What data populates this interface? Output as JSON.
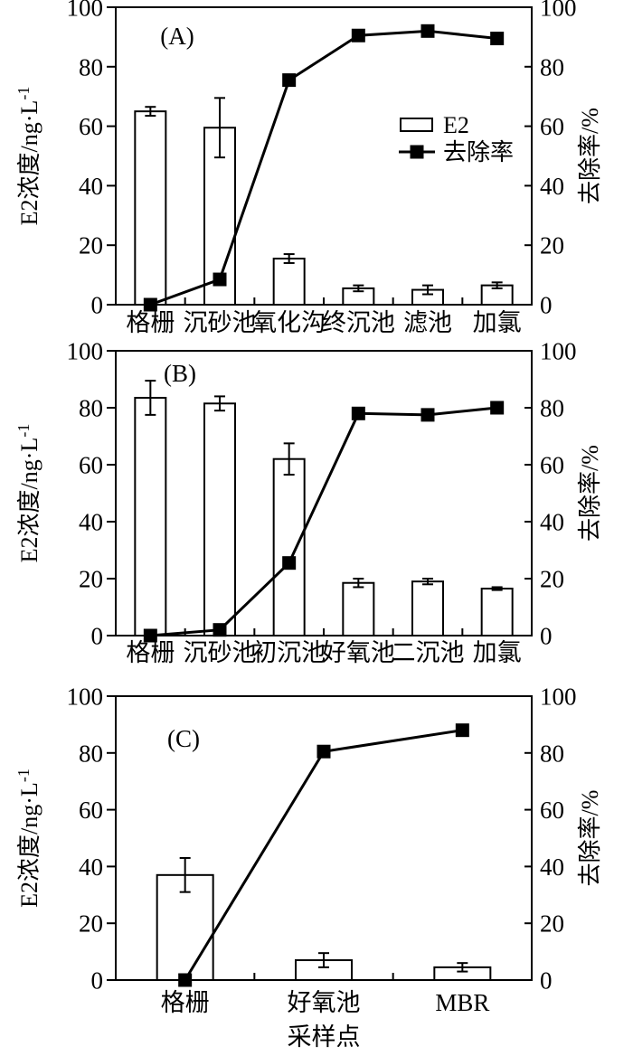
{
  "figure": {
    "background": "#ffffff",
    "ink_color": "#000000",
    "bar_fill": "#ffffff",
    "y_left_label_base": "E2浓度/ng·L",
    "y_left_label_sup": "-1",
    "y_left_label_full": "E2浓度/ng·L⁻¹",
    "y_right_label": "去除率/%",
    "x_axis_label": "采样点",
    "legend": {
      "bar_label": "E2",
      "line_label": "去除率",
      "position": "upper-right-inside-panel-A"
    }
  },
  "chart_data": [
    {
      "panel_label": "(A)",
      "type": "bar+line",
      "categories": [
        "格栅",
        "沉砂池",
        "氧化沟",
        "终沉池",
        "滤池",
        "加氯"
      ],
      "series": [
        {
          "name": "E2",
          "type": "bar",
          "axis": "left",
          "values": [
            65,
            59.5,
            15.5,
            5.5,
            5,
            6.5
          ],
          "errors": [
            1.5,
            10,
            1.5,
            1,
            1.5,
            1
          ]
        },
        {
          "name": "去除率",
          "type": "line",
          "axis": "right",
          "marker": "filled-square",
          "values": [
            0,
            8.5,
            75.5,
            90.5,
            92,
            89.5
          ]
        }
      ],
      "ylabel_left": "E2浓度/ng·L⁻¹",
      "ylabel_right": "去除率/%",
      "ylim_left": [
        0,
        100
      ],
      "ylim_right": [
        0,
        100
      ],
      "yticks": [
        0,
        20,
        40,
        60,
        80,
        100
      ],
      "grid": false,
      "show_legend": true,
      "xlabel": ""
    },
    {
      "panel_label": "(B)",
      "type": "bar+line",
      "categories": [
        "格栅",
        "沉砂池",
        "初沉池",
        "好氧池",
        "二沉池",
        "加氯"
      ],
      "series": [
        {
          "name": "E2",
          "type": "bar",
          "axis": "left",
          "values": [
            83.5,
            81.5,
            62,
            18.5,
            19,
            16.5
          ],
          "errors": [
            6,
            2.5,
            5.5,
            1.5,
            1,
            0.5
          ]
        },
        {
          "name": "去除率",
          "type": "line",
          "axis": "right",
          "marker": "filled-square",
          "values": [
            0,
            2,
            25.5,
            78,
            77.5,
            80
          ]
        }
      ],
      "ylabel_left": "E2浓度/ng·L⁻¹",
      "ylabel_right": "去除率/%",
      "ylim_left": [
        0,
        100
      ],
      "ylim_right": [
        0,
        100
      ],
      "yticks": [
        0,
        20,
        40,
        60,
        80,
        100
      ],
      "grid": false,
      "show_legend": false,
      "xlabel": ""
    },
    {
      "panel_label": "(C)",
      "type": "bar+line",
      "categories": [
        "格栅",
        "好氧池",
        "MBR"
      ],
      "series": [
        {
          "name": "E2",
          "type": "bar",
          "axis": "left",
          "values": [
            37,
            7,
            4.5
          ],
          "errors": [
            6,
            2.5,
            1.5
          ]
        },
        {
          "name": "去除率",
          "type": "line",
          "axis": "right",
          "marker": "filled-square",
          "values": [
            0,
            80.5,
            88
          ]
        }
      ],
      "ylabel_left": "E2浓度/ng·L⁻¹",
      "ylabel_right": "去除率/%",
      "ylim_left": [
        0,
        100
      ],
      "ylim_right": [
        0,
        100
      ],
      "yticks": [
        0,
        20,
        40,
        60,
        80,
        100
      ],
      "grid": false,
      "show_legend": false,
      "xlabel": "采样点"
    }
  ]
}
